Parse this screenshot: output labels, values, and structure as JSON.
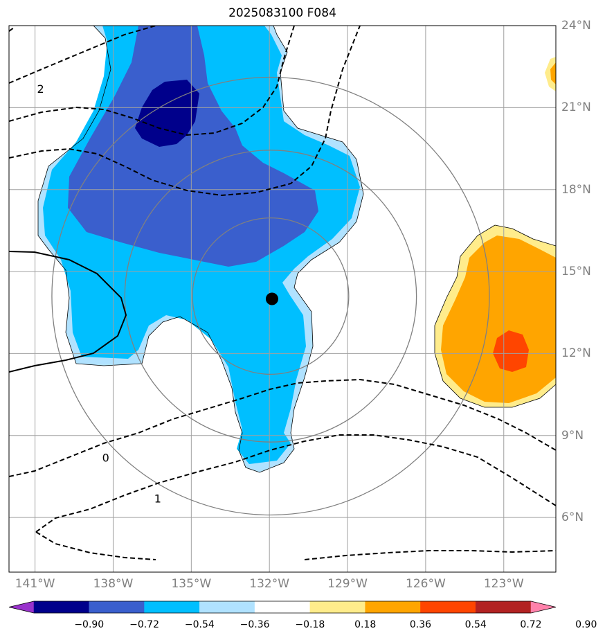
{
  "title": "2025083100 F084",
  "map": {
    "lon_range": [
      -142,
      -121
    ],
    "lat_range": [
      4,
      24
    ],
    "lon_ticks": [
      "141°W",
      "138°W",
      "135°W",
      "132°W",
      "129°W",
      "126°W",
      "123°W"
    ],
    "lon_tick_values": [
      -141,
      -138,
      -135,
      -132,
      -129,
      -126,
      -123
    ],
    "lat_ticks": [
      "24°N",
      "21°N",
      "18°N",
      "15°N",
      "12°N",
      "9°N",
      "6°N"
    ],
    "lat_tick_values": [
      24,
      21,
      18,
      15,
      12,
      9,
      6
    ],
    "storm_center": {
      "lon": -131.9,
      "lat": 14.0
    },
    "range_rings_deg": [
      3.0,
      5.6,
      8.4
    ],
    "contour_labels": [
      {
        "text": "2",
        "lon": -141.0,
        "lat": 22.0
      },
      {
        "text": "0",
        "lon": -138.5,
        "lat": 8.5
      },
      {
        "text": "1",
        "lon": -136.5,
        "lat": 7.0
      }
    ]
  },
  "colorbar": {
    "colors": [
      "#9932cc",
      "#00008b",
      "#3a5fcd",
      "#00bfff",
      "#b0e2ff",
      "#ffffff",
      "#ffec8b",
      "#ffa500",
      "#ff4500",
      "#b22222",
      "#ff82ab"
    ],
    "labels": [
      "−0.90",
      "−0.72",
      "−0.54",
      "−0.36",
      "−0.18",
      "0.18",
      "0.36",
      "0.54",
      "0.72",
      "0.90"
    ]
  },
  "chart_data": {
    "type": "heatmap",
    "title": "2025083100 F084",
    "levels": [
      -0.9,
      -0.72,
      -0.54,
      -0.36,
      -0.18,
      0.18,
      0.36,
      0.54,
      0.72,
      0.9
    ],
    "xlim": [
      -142,
      -121
    ],
    "ylim": [
      4,
      24
    ],
    "storm_center": [
      -131.9,
      14.0
    ],
    "contours_dashed": [
      "2",
      "0",
      "1"
    ]
  }
}
